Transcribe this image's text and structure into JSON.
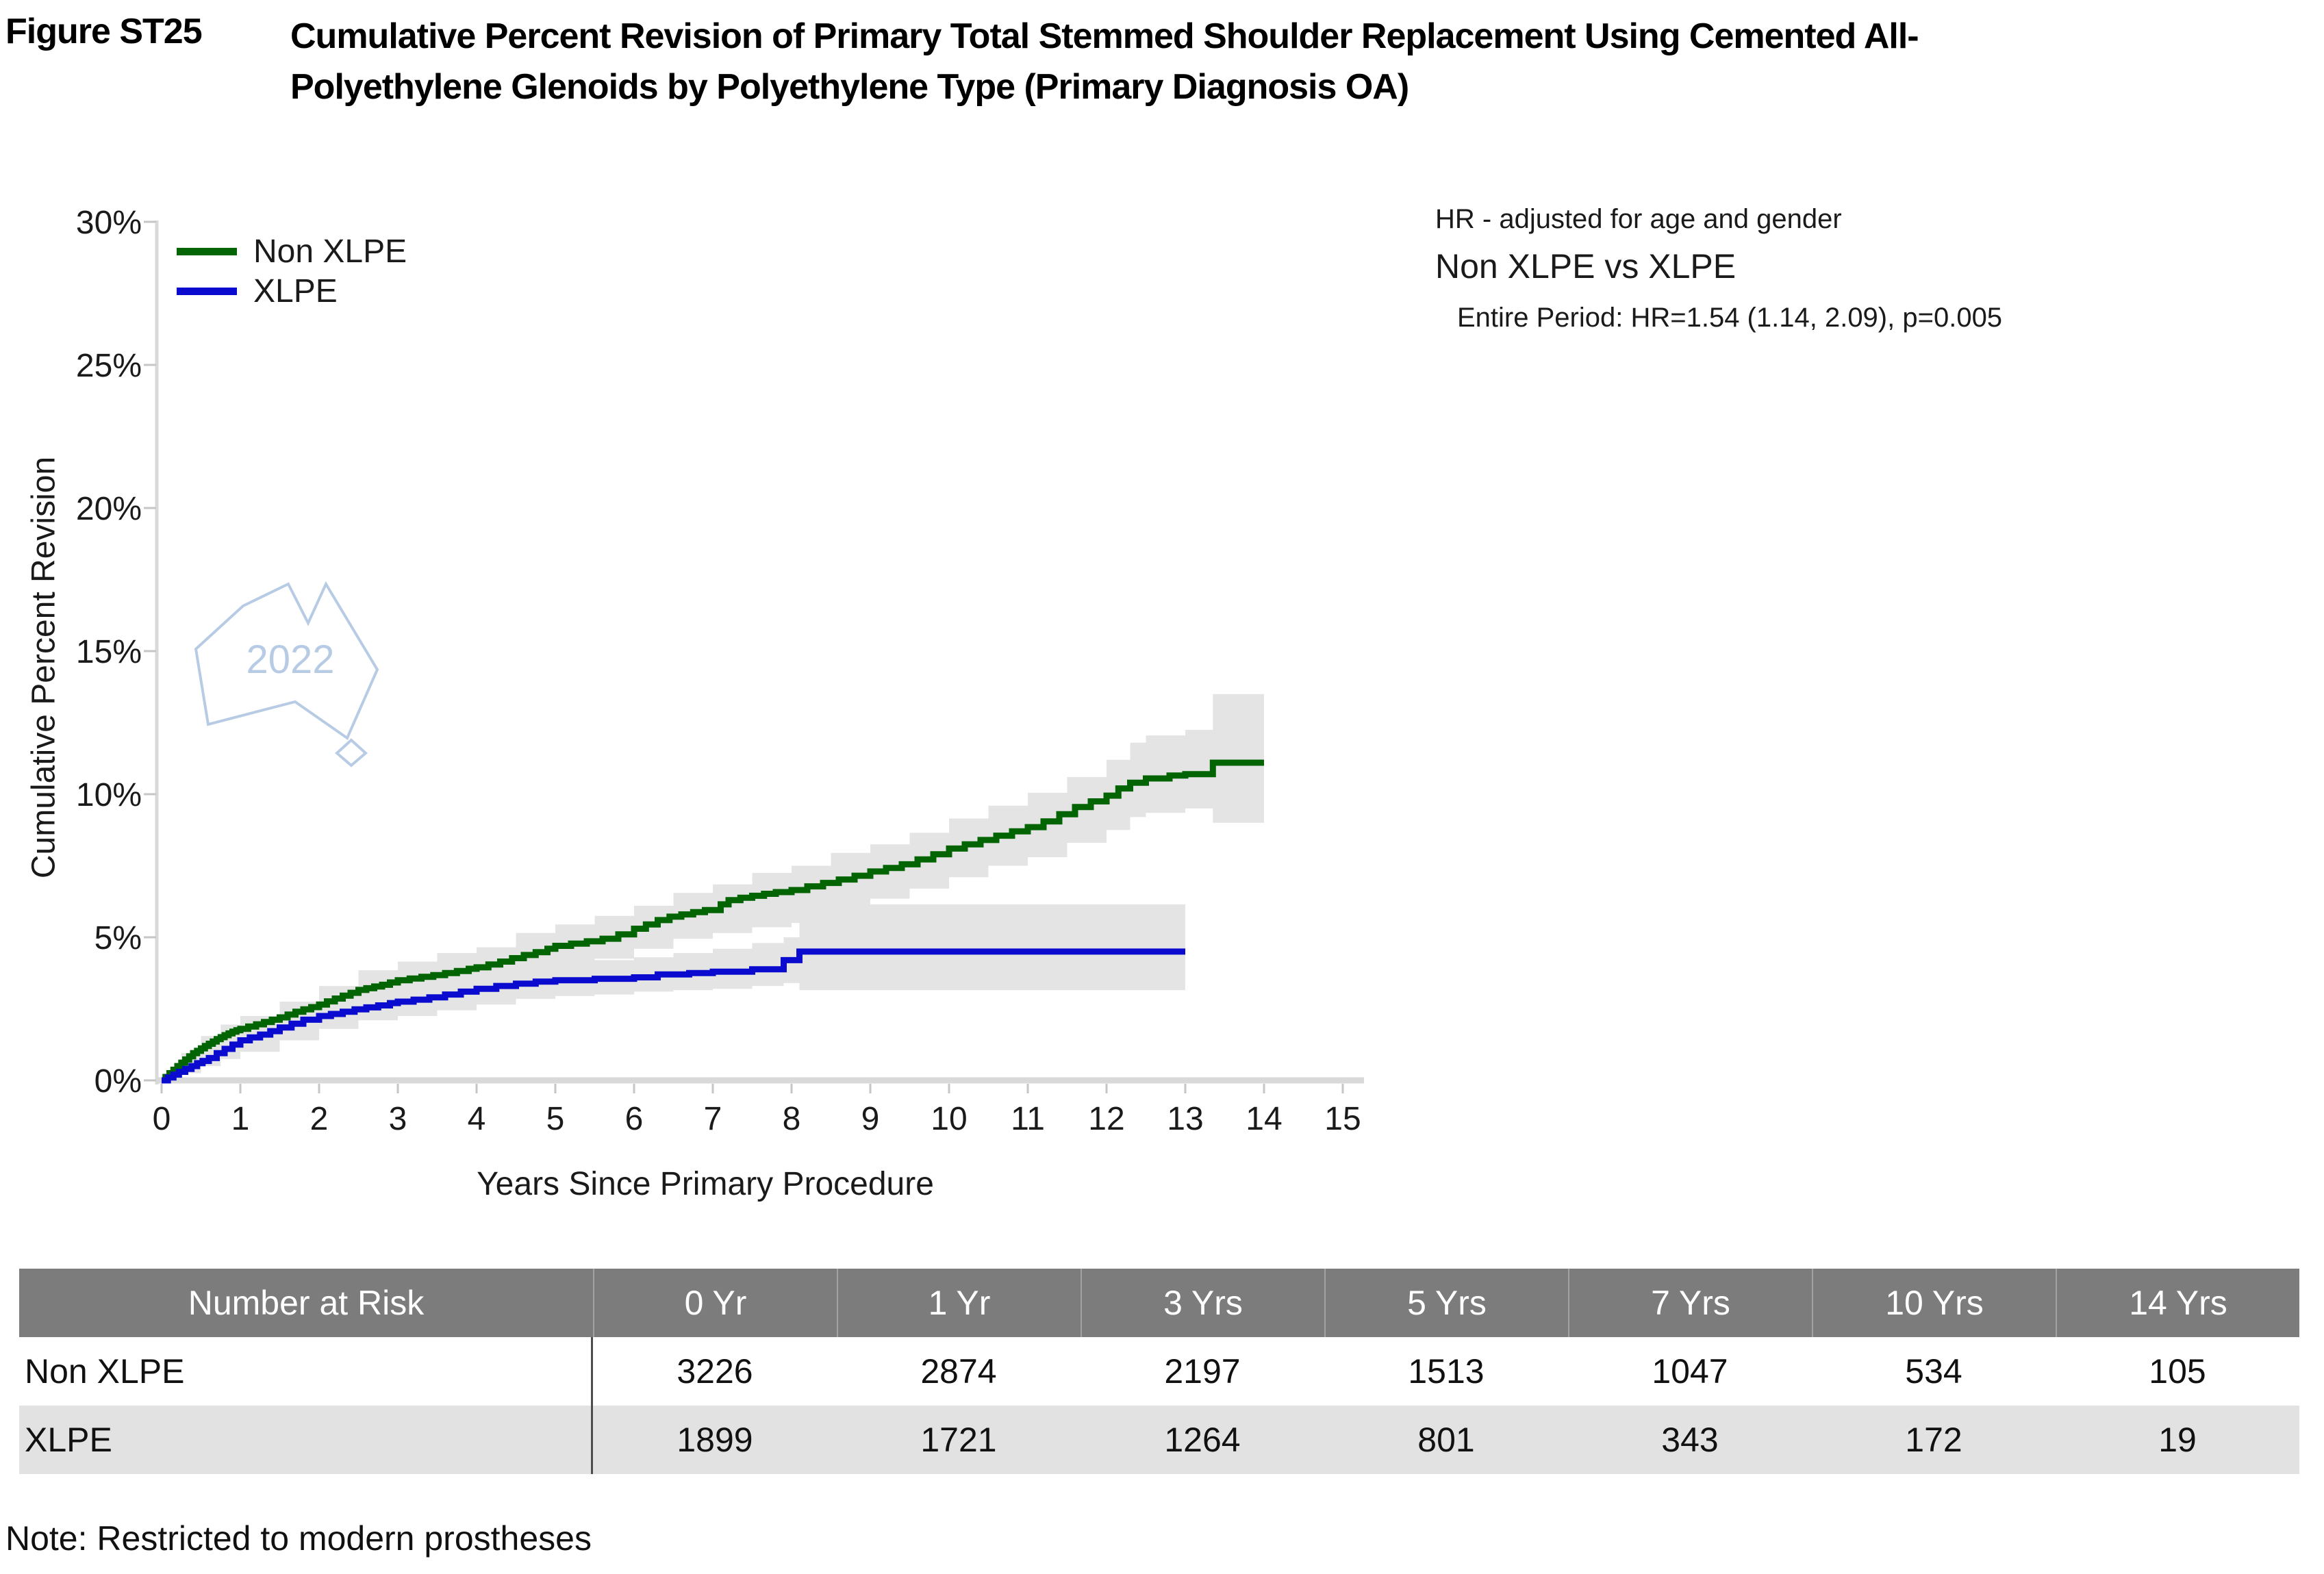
{
  "figure": {
    "label": "Figure ST25",
    "title_line1": "Cumulative Percent Revision of Primary Total Stemmed Shoulder Replacement Using Cemented All-",
    "title_line2": "Polyethylene Glenoids by Polyethylene Type (Primary Diagnosis OA)"
  },
  "annotation": {
    "line1": "HR - adjusted for age and gender",
    "line2": "Non XLPE vs XLPE",
    "line3": "Entire Period: HR=1.54 (1.14, 2.09), p=0.005"
  },
  "watermark": {
    "year": "2022",
    "color": "#b7cce4"
  },
  "chart_data": {
    "type": "line",
    "subtype": "kaplan-meier-step",
    "xlabel": "Years Since Primary Procedure",
    "ylabel": "Cumulative Percent Revision",
    "xlim": [
      0,
      15
    ],
    "ylim": [
      0,
      30
    ],
    "grid": false,
    "legend_position": "top-left",
    "x_ticks": [
      "0",
      "1",
      "2",
      "3",
      "4",
      "5",
      "6",
      "7",
      "8",
      "9",
      "10",
      "11",
      "12",
      "13",
      "14",
      "15"
    ],
    "y_tick_values": [
      0,
      5,
      10,
      15,
      20,
      25,
      30
    ],
    "y_tick_labels": [
      "0%",
      "5%",
      "10%",
      "15%",
      "20%",
      "25%",
      "30%"
    ],
    "axis_color": "#d9d9d9",
    "tick_color": "#c6c6c6",
    "band_color": "#e4e4e4",
    "series": [
      {
        "name": "Non XLPE",
        "color": "#036403",
        "points": [
          [
            0,
            0
          ],
          [
            0.05,
            0.12
          ],
          [
            0.1,
            0.25
          ],
          [
            0.15,
            0.37
          ],
          [
            0.2,
            0.5
          ],
          [
            0.25,
            0.62
          ],
          [
            0.3,
            0.73
          ],
          [
            0.35,
            0.84
          ],
          [
            0.4,
            0.95
          ],
          [
            0.45,
            1.03
          ],
          [
            0.5,
            1.12
          ],
          [
            0.55,
            1.2
          ],
          [
            0.6,
            1.28
          ],
          [
            0.65,
            1.36
          ],
          [
            0.7,
            1.44
          ],
          [
            0.75,
            1.51
          ],
          [
            0.8,
            1.58
          ],
          [
            0.85,
            1.64
          ],
          [
            0.9,
            1.7
          ],
          [
            0.95,
            1.75
          ],
          [
            1,
            1.8
          ],
          [
            1.1,
            1.88
          ],
          [
            1.2,
            1.96
          ],
          [
            1.3,
            2.04
          ],
          [
            1.4,
            2.12
          ],
          [
            1.5,
            2.2
          ],
          [
            1.6,
            2.3
          ],
          [
            1.7,
            2.4
          ],
          [
            1.8,
            2.48
          ],
          [
            1.9,
            2.56
          ],
          [
            2,
            2.65
          ],
          [
            2.1,
            2.76
          ],
          [
            2.2,
            2.86
          ],
          [
            2.3,
            2.96
          ],
          [
            2.4,
            3.06
          ],
          [
            2.5,
            3.16
          ],
          [
            2.6,
            3.22
          ],
          [
            2.7,
            3.28
          ],
          [
            2.8,
            3.34
          ],
          [
            2.9,
            3.42
          ],
          [
            3,
            3.5
          ],
          [
            3.15,
            3.56
          ],
          [
            3.3,
            3.62
          ],
          [
            3.45,
            3.68
          ],
          [
            3.6,
            3.75
          ],
          [
            3.75,
            3.82
          ],
          [
            3.9,
            3.9
          ],
          [
            4,
            3.95
          ],
          [
            4.15,
            4.05
          ],
          [
            4.3,
            4.15
          ],
          [
            4.45,
            4.27
          ],
          [
            4.6,
            4.38
          ],
          [
            4.75,
            4.48
          ],
          [
            4.9,
            4.6
          ],
          [
            5,
            4.7
          ],
          [
            5.2,
            4.78
          ],
          [
            5.4,
            4.86
          ],
          [
            5.6,
            4.95
          ],
          [
            5.8,
            5.1
          ],
          [
            6,
            5.3
          ],
          [
            6.15,
            5.45
          ],
          [
            6.3,
            5.6
          ],
          [
            6.45,
            5.72
          ],
          [
            6.6,
            5.8
          ],
          [
            6.75,
            5.88
          ],
          [
            6.9,
            5.95
          ],
          [
            7.1,
            6.15
          ],
          [
            7.2,
            6.3
          ],
          [
            7.35,
            6.38
          ],
          [
            7.5,
            6.45
          ],
          [
            7.65,
            6.52
          ],
          [
            7.8,
            6.58
          ],
          [
            8,
            6.65
          ],
          [
            8.2,
            6.78
          ],
          [
            8.4,
            6.9
          ],
          [
            8.6,
            7.02
          ],
          [
            8.8,
            7.15
          ],
          [
            9,
            7.3
          ],
          [
            9.2,
            7.42
          ],
          [
            9.4,
            7.55
          ],
          [
            9.6,
            7.72
          ],
          [
            9.8,
            7.9
          ],
          [
            10,
            8.1
          ],
          [
            10.2,
            8.25
          ],
          [
            10.4,
            8.4
          ],
          [
            10.6,
            8.55
          ],
          [
            10.8,
            8.7
          ],
          [
            11,
            8.85
          ],
          [
            11.2,
            9.05
          ],
          [
            11.4,
            9.3
          ],
          [
            11.6,
            9.55
          ],
          [
            11.8,
            9.75
          ],
          [
            12,
            9.95
          ],
          [
            12.15,
            10.2
          ],
          [
            12.3,
            10.4
          ],
          [
            12.5,
            10.55
          ],
          [
            12.8,
            10.65
          ],
          [
            13,
            10.7
          ],
          [
            13.35,
            11.1
          ],
          [
            14,
            11.1
          ]
        ],
        "band": [
          [
            0,
            0.2,
            0
          ],
          [
            0.25,
            0.95,
            0.4
          ],
          [
            0.5,
            1.55,
            0.8
          ],
          [
            0.75,
            1.95,
            1.15
          ],
          [
            1,
            2.25,
            1.4
          ],
          [
            1.5,
            2.75,
            1.8
          ],
          [
            2,
            3.3,
            2.2
          ],
          [
            2.5,
            3.85,
            2.65
          ],
          [
            3,
            4.15,
            2.9
          ],
          [
            3.5,
            4.45,
            3.15
          ],
          [
            4,
            4.65,
            3.3
          ],
          [
            4.5,
            5.15,
            3.75
          ],
          [
            5,
            5.45,
            4.0
          ],
          [
            5.5,
            5.75,
            4.25
          ],
          [
            6,
            6.1,
            4.6
          ],
          [
            6.5,
            6.55,
            4.95
          ],
          [
            7,
            6.85,
            5.15
          ],
          [
            7.5,
            7.25,
            5.35
          ],
          [
            8,
            7.5,
            5.5
          ],
          [
            8.5,
            7.95,
            6.1
          ],
          [
            9,
            8.25,
            6.35
          ],
          [
            9.5,
            8.65,
            6.7
          ],
          [
            10,
            9.15,
            7.1
          ],
          [
            10.5,
            9.6,
            7.5
          ],
          [
            11,
            10.05,
            7.8
          ],
          [
            11.5,
            10.6,
            8.3
          ],
          [
            12,
            11.2,
            8.75
          ],
          [
            12.3,
            11.8,
            9.2
          ],
          [
            12.5,
            12.05,
            9.35
          ],
          [
            13,
            12.25,
            9.5
          ],
          [
            13.35,
            13.5,
            9.0
          ],
          [
            14,
            13.5,
            9.0
          ]
        ]
      },
      {
        "name": "XLPE",
        "color": "#0b0bd0",
        "points": [
          [
            0,
            0
          ],
          [
            0.08,
            0.1
          ],
          [
            0.15,
            0.2
          ],
          [
            0.22,
            0.3
          ],
          [
            0.3,
            0.4
          ],
          [
            0.38,
            0.5
          ],
          [
            0.45,
            0.6
          ],
          [
            0.52,
            0.68
          ],
          [
            0.6,
            0.78
          ],
          [
            0.7,
            0.95
          ],
          [
            0.8,
            1.1
          ],
          [
            0.9,
            1.25
          ],
          [
            1,
            1.4
          ],
          [
            1.12,
            1.5
          ],
          [
            1.25,
            1.6
          ],
          [
            1.38,
            1.72
          ],
          [
            1.5,
            1.85
          ],
          [
            1.65,
            1.98
          ],
          [
            1.8,
            2.12
          ],
          [
            2,
            2.25
          ],
          [
            2.15,
            2.32
          ],
          [
            2.3,
            2.4
          ],
          [
            2.45,
            2.48
          ],
          [
            2.6,
            2.55
          ],
          [
            2.75,
            2.62
          ],
          [
            2.9,
            2.7
          ],
          [
            3,
            2.75
          ],
          [
            3.2,
            2.82
          ],
          [
            3.4,
            2.9
          ],
          [
            3.6,
            3.0
          ],
          [
            3.8,
            3.1
          ],
          [
            4,
            3.2
          ],
          [
            4.25,
            3.3
          ],
          [
            4.5,
            3.38
          ],
          [
            4.75,
            3.45
          ],
          [
            5,
            3.5
          ],
          [
            5.5,
            3.55
          ],
          [
            6,
            3.6
          ],
          [
            6.3,
            3.7
          ],
          [
            6.7,
            3.75
          ],
          [
            7,
            3.8
          ],
          [
            7.5,
            3.88
          ],
          [
            7.9,
            4.2
          ],
          [
            8.1,
            4.5
          ],
          [
            13,
            4.5
          ]
        ],
        "band": [
          [
            0,
            0.2,
            0
          ],
          [
            0.25,
            0.8,
            0.25
          ],
          [
            0.5,
            1.2,
            0.5
          ],
          [
            0.75,
            1.55,
            0.75
          ],
          [
            1,
            1.85,
            1.0
          ],
          [
            1.5,
            2.4,
            1.4
          ],
          [
            2,
            2.8,
            1.8
          ],
          [
            2.5,
            3.15,
            2.1
          ],
          [
            3,
            3.35,
            2.25
          ],
          [
            3.5,
            3.6,
            2.45
          ],
          [
            4,
            3.85,
            2.65
          ],
          [
            4.5,
            4.0,
            2.85
          ],
          [
            5,
            4.1,
            2.95
          ],
          [
            5.5,
            4.2,
            3.0
          ],
          [
            6,
            4.3,
            3.1
          ],
          [
            6.5,
            4.45,
            3.15
          ],
          [
            7,
            4.6,
            3.2
          ],
          [
            7.5,
            4.8,
            3.3
          ],
          [
            7.9,
            5.0,
            3.4
          ],
          [
            8.1,
            6.15,
            3.15
          ],
          [
            13,
            6.15,
            3.15
          ]
        ]
      }
    ]
  },
  "table": {
    "header_bg": "#7c7c7c",
    "alt_row_bg": "#e2e2e2",
    "header": [
      "Number at Risk",
      "0 Yr",
      "1 Yr",
      "3 Yrs",
      "5 Yrs",
      "7 Yrs",
      "10 Yrs",
      "14 Yrs"
    ],
    "rows": [
      {
        "label": "Non XLPE",
        "values": [
          "3226",
          "2874",
          "2197",
          "1513",
          "1047",
          "534",
          "105"
        ]
      },
      {
        "label": "XLPE",
        "values": [
          "1899",
          "1721",
          "1264",
          "801",
          "343",
          "172",
          "19"
        ]
      }
    ]
  },
  "note": "Note: Restricted to modern prostheses"
}
